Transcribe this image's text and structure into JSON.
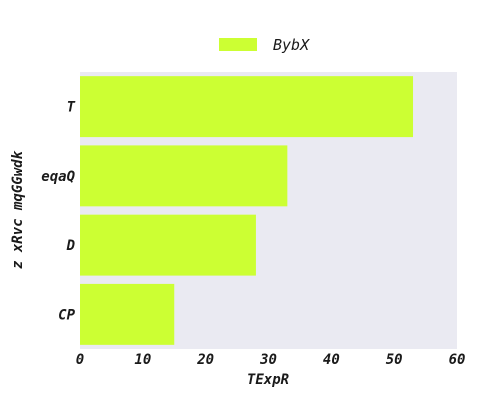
{
  "chart_data": {
    "type": "bar",
    "orientation": "horizontal",
    "categories": [
      "CP",
      "D",
      "eqaQ",
      "T"
    ],
    "series": [
      {
        "name": "BybX",
        "values": [
          15,
          28,
          33,
          53
        ],
        "color": "#ccff33"
      }
    ],
    "xlabel": "TExpR",
    "ylabel": "z xRvc mqGGwdk",
    "xlim": [
      0,
      60
    ],
    "xticks": [
      "0",
      "10",
      "20",
      "30",
      "40",
      "50",
      "60"
    ],
    "grid": false,
    "background_color": "#eaeaf2",
    "legend_position": "top-center"
  }
}
